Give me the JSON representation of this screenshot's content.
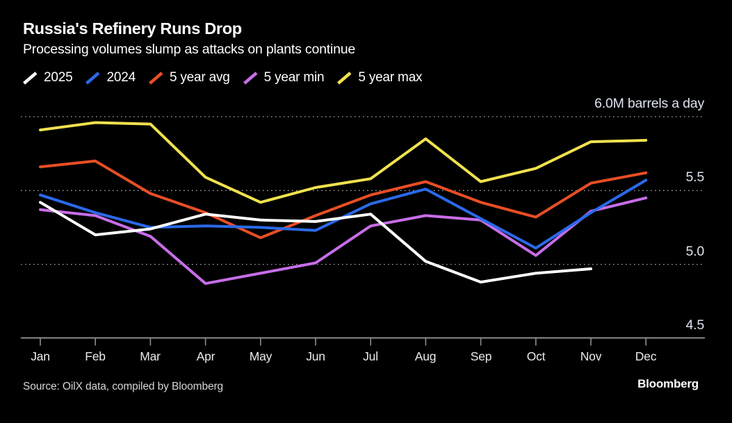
{
  "header": {
    "title": "Russia's Refinery Runs Drop",
    "subtitle": "Processing volumes slump as attacks on plants continue"
  },
  "chart_data": {
    "type": "line",
    "title": "Russia's Refinery Runs Drop",
    "subtitle": "Processing volumes slump as attacks on plants continue",
    "unit": "M barrels a day",
    "categories": [
      "Jan",
      "Feb",
      "Mar",
      "Apr",
      "May",
      "Jun",
      "Jul",
      "Aug",
      "Sep",
      "Oct",
      "Nov",
      "Dec"
    ],
    "series": [
      {
        "name": "2025",
        "color": "#ffffff",
        "values": [
          5.42,
          5.2,
          5.24,
          5.34,
          5.3,
          5.29,
          5.34,
          5.02,
          4.88,
          4.94,
          4.97,
          null
        ]
      },
      {
        "name": "2024",
        "color": "#2b69ea",
        "values": [
          5.47,
          5.35,
          5.25,
          5.26,
          5.25,
          5.23,
          5.41,
          5.51,
          5.31,
          5.11,
          5.35,
          5.57
        ]
      },
      {
        "name": "5 year avg",
        "color": "#e84e25",
        "values": [
          5.66,
          5.7,
          5.48,
          5.35,
          5.18,
          5.33,
          5.47,
          5.56,
          5.42,
          5.32,
          5.55,
          5.62
        ]
      },
      {
        "name": "5 year min",
        "color": "#c76de8",
        "values": [
          5.37,
          5.33,
          5.19,
          4.87,
          4.94,
          5.01,
          5.26,
          5.33,
          5.3,
          5.06,
          5.36,
          5.45
        ]
      },
      {
        "name": "5 year max",
        "color": "#f0e14e",
        "values": [
          5.91,
          5.96,
          5.95,
          5.59,
          5.42,
          5.52,
          5.58,
          5.85,
          5.56,
          5.65,
          5.83,
          5.84
        ]
      }
    ],
    "draw_order": [
      "5 year max",
      "5 year min",
      "5 year avg",
      "2024",
      "2025"
    ],
    "yticks": [
      {
        "value": 6.0,
        "label": "6.0M barrels a day"
      },
      {
        "value": 5.5,
        "label": "5.5"
      },
      {
        "value": 5.0,
        "label": "5.0"
      },
      {
        "value": 4.5,
        "label": "4.5"
      }
    ],
    "ylim": [
      4.5,
      6.0
    ],
    "grid": "dotted horizontal, label above line",
    "legend_position": "top"
  },
  "footer": {
    "source": "Source: OilX data, compiled by Bloomberg",
    "brand": "Bloomberg"
  }
}
